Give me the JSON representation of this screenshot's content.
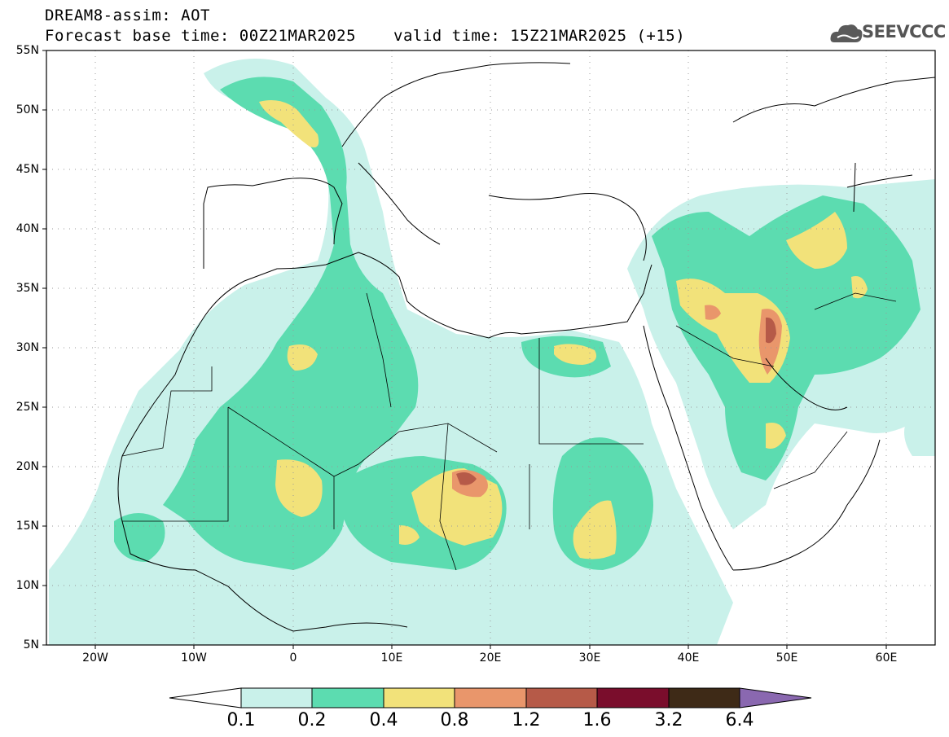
{
  "header": {
    "line1": "DREAM8-assim: AOT",
    "line2": "Forecast base time: 00Z21MAR2025",
    "line3": "valid time: 15Z21MAR2025 (+15)"
  },
  "logo": {
    "text": "SEEVCCC",
    "icon": "cloud-icon"
  },
  "map": {
    "lat_labels": [
      "55N",
      "50N",
      "45N",
      "40N",
      "35N",
      "30N",
      "25N",
      "20N",
      "15N",
      "10N",
      "5N"
    ],
    "lon_labels": [
      "20W",
      "10W",
      "0",
      "10E",
      "20E",
      "30E",
      "40E",
      "50E",
      "60E"
    ]
  },
  "colorbar": {
    "labels": [
      "0.1",
      "0.2",
      "0.4",
      "0.8",
      "1.2",
      "1.6",
      "3.2",
      "6.4"
    ],
    "colors": [
      "#c9f1ea",
      "#5cdcb0",
      "#f2e27a",
      "#e9966b",
      "#b65a48",
      "#7a0d2c",
      "#3e2a17",
      "#8a68b0"
    ]
  },
  "colors": {
    "level1": "#c9f1ea",
    "level2": "#5cdcb0",
    "level3": "#f2e27a",
    "level4": "#e9966b",
    "level5": "#b65a48"
  }
}
